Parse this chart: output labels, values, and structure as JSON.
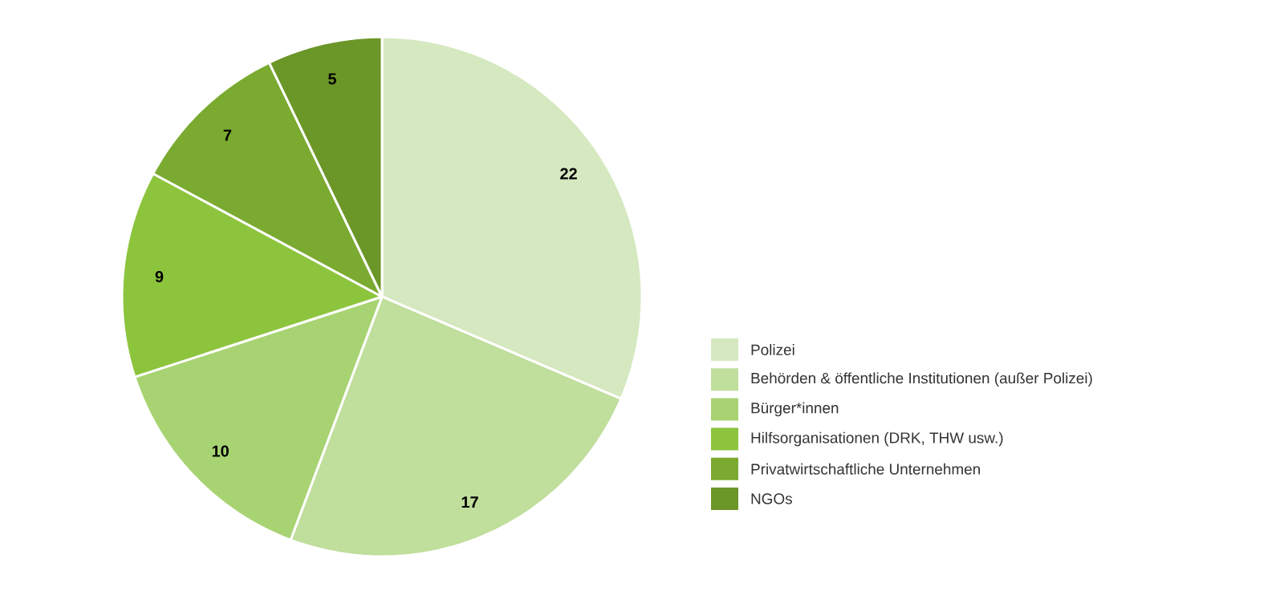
{
  "chart_data": {
    "type": "pie",
    "categories": [
      "Polizei",
      "Behörden & öffentliche Institutionen (außer Polizei)",
      "Bürger*innen",
      "Hilfsorganisationen (DRK, THW usw.)",
      "Privatwirtschaftliche Unternehmen",
      "NGOs"
    ],
    "values": [
      22,
      17,
      10,
      9,
      7,
      5
    ],
    "colors": [
      "#d5e8c0",
      "#c0de9c",
      "#a8d372",
      "#8dc43d",
      "#7aaa30",
      "#6b9628"
    ],
    "data_labels": true,
    "legend": "right"
  }
}
